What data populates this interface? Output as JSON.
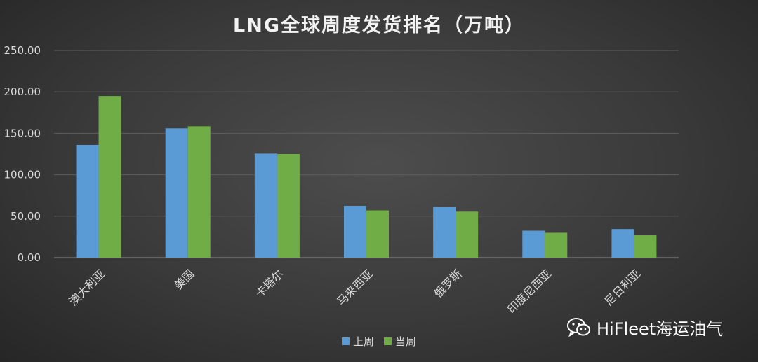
{
  "chart_data": {
    "type": "bar",
    "title": "LNG全球周度发货排名（万吨）",
    "categories": [
      "澳大利亚",
      "美国",
      "卡塔尔",
      "马来西亚",
      "俄罗斯",
      "印度尼西亚",
      "尼日利亚"
    ],
    "series": [
      {
        "name": "上周",
        "color": "#5b9bd5",
        "values": [
          136.0,
          156.0,
          125.5,
          62.5,
          61.0,
          32.5,
          34.5
        ]
      },
      {
        "name": "当周",
        "color": "#70ad47",
        "values": [
          195.0,
          158.5,
          125.0,
          57.0,
          55.5,
          30.0,
          27.0
        ]
      }
    ],
    "ylim": [
      0,
      250
    ],
    "yticks": [
      "0.00",
      "50.00",
      "100.00",
      "150.00",
      "200.00",
      "250.00"
    ],
    "grid": true,
    "legend_position": "bottom"
  },
  "watermark": {
    "text": "HiFleet海运油气",
    "icon": "wechat-icon"
  }
}
